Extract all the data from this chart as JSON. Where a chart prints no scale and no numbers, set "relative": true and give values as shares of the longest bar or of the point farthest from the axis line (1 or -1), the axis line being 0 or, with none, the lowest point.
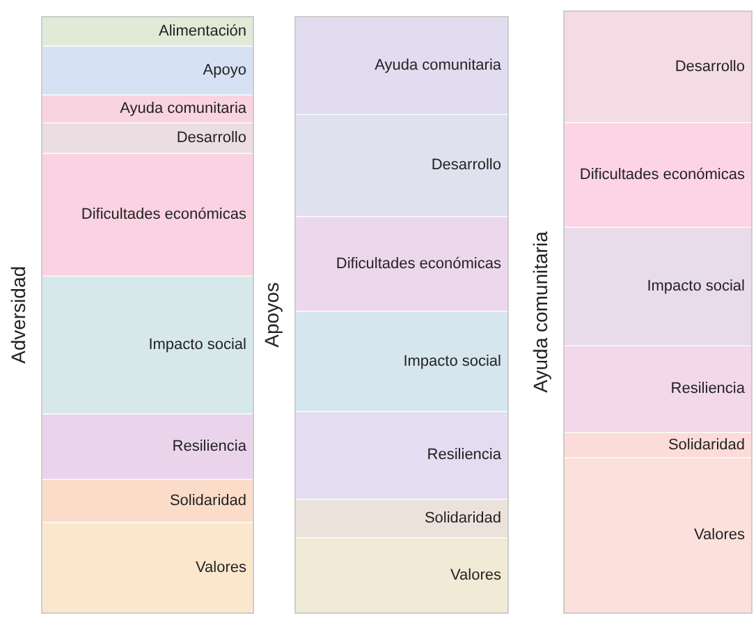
{
  "chart_data": [
    {
      "type": "bar",
      "stacked": true,
      "relative": true,
      "legend": false,
      "ylabel": "Adversidad",
      "categories": [
        null
      ],
      "series": [
        {
          "name": "Valores",
          "color": "#fbe8cc",
          "values": [
            0.152
          ]
        },
        {
          "name": "Solidaridad",
          "color": "#fadcc8",
          "values": [
            0.072
          ]
        },
        {
          "name": "Resiliencia",
          "color": "#ead4ec",
          "values": [
            0.11
          ]
        },
        {
          "name": "Impacto social",
          "color": "#d6e8ea",
          "values": [
            0.231
          ]
        },
        {
          "name": "Dificultades económicas",
          "color": "#fbd2e2",
          "values": [
            0.206
          ]
        },
        {
          "name": "Desarrollo",
          "color": "#ebdde2",
          "values": [
            0.051
          ]
        },
        {
          "name": "Ayuda comunitaria",
          "color": "#f9d4e0",
          "values": [
            0.047
          ]
        },
        {
          "name": "Apoyo",
          "color": "#d6e2f4",
          "values": [
            0.082
          ]
        },
        {
          "name": "Alimentación",
          "color": "#e0ead6",
          "values": [
            0.049
          ]
        }
      ]
    },
    {
      "type": "bar",
      "stacked": true,
      "relative": true,
      "legend": false,
      "ylabel": "Apoyos",
      "categories": [
        null
      ],
      "series": [
        {
          "name": "Valores",
          "color": "#f0ead6",
          "values": [
            0.126
          ]
        },
        {
          "name": "Solidaridad",
          "color": "#ece2dc",
          "values": [
            0.065
          ]
        },
        {
          "name": "Resiliencia",
          "color": "#e4dcf0",
          "values": [
            0.147
          ]
        },
        {
          "name": "Impacto social",
          "color": "#d6e6ee",
          "values": [
            0.168
          ]
        },
        {
          "name": "Dificultades económicas",
          "color": "#ecd8ec",
          "values": [
            0.159
          ]
        },
        {
          "name": "Desarrollo",
          "color": "#dfe2ee",
          "values": [
            0.171
          ]
        },
        {
          "name": "Ayuda comunitaria",
          "color": "#e2dcf0",
          "values": [
            0.164
          ]
        }
      ]
    },
    {
      "type": "bar",
      "stacked": true,
      "relative": true,
      "legend": false,
      "ylabel": "Ayuda comunitaria",
      "categories": [
        null
      ],
      "series": [
        {
          "name": "Valores",
          "color": "#fbe0dc",
          "values": [
            0.258
          ]
        },
        {
          "name": "Solidaridad",
          "color": "#fcdcd8",
          "values": [
            0.042
          ]
        },
        {
          "name": "Resiliencia",
          "color": "#f2d8e8",
          "values": [
            0.144
          ]
        },
        {
          "name": "Impacto social",
          "color": "#e8dceb",
          "values": [
            0.197
          ]
        },
        {
          "name": "Dificultades económicas",
          "color": "#fcd4e6",
          "values": [
            0.174
          ]
        },
        {
          "name": "Desarrollo",
          "color": "#f4dbe4",
          "values": [
            0.185
          ]
        }
      ]
    }
  ]
}
